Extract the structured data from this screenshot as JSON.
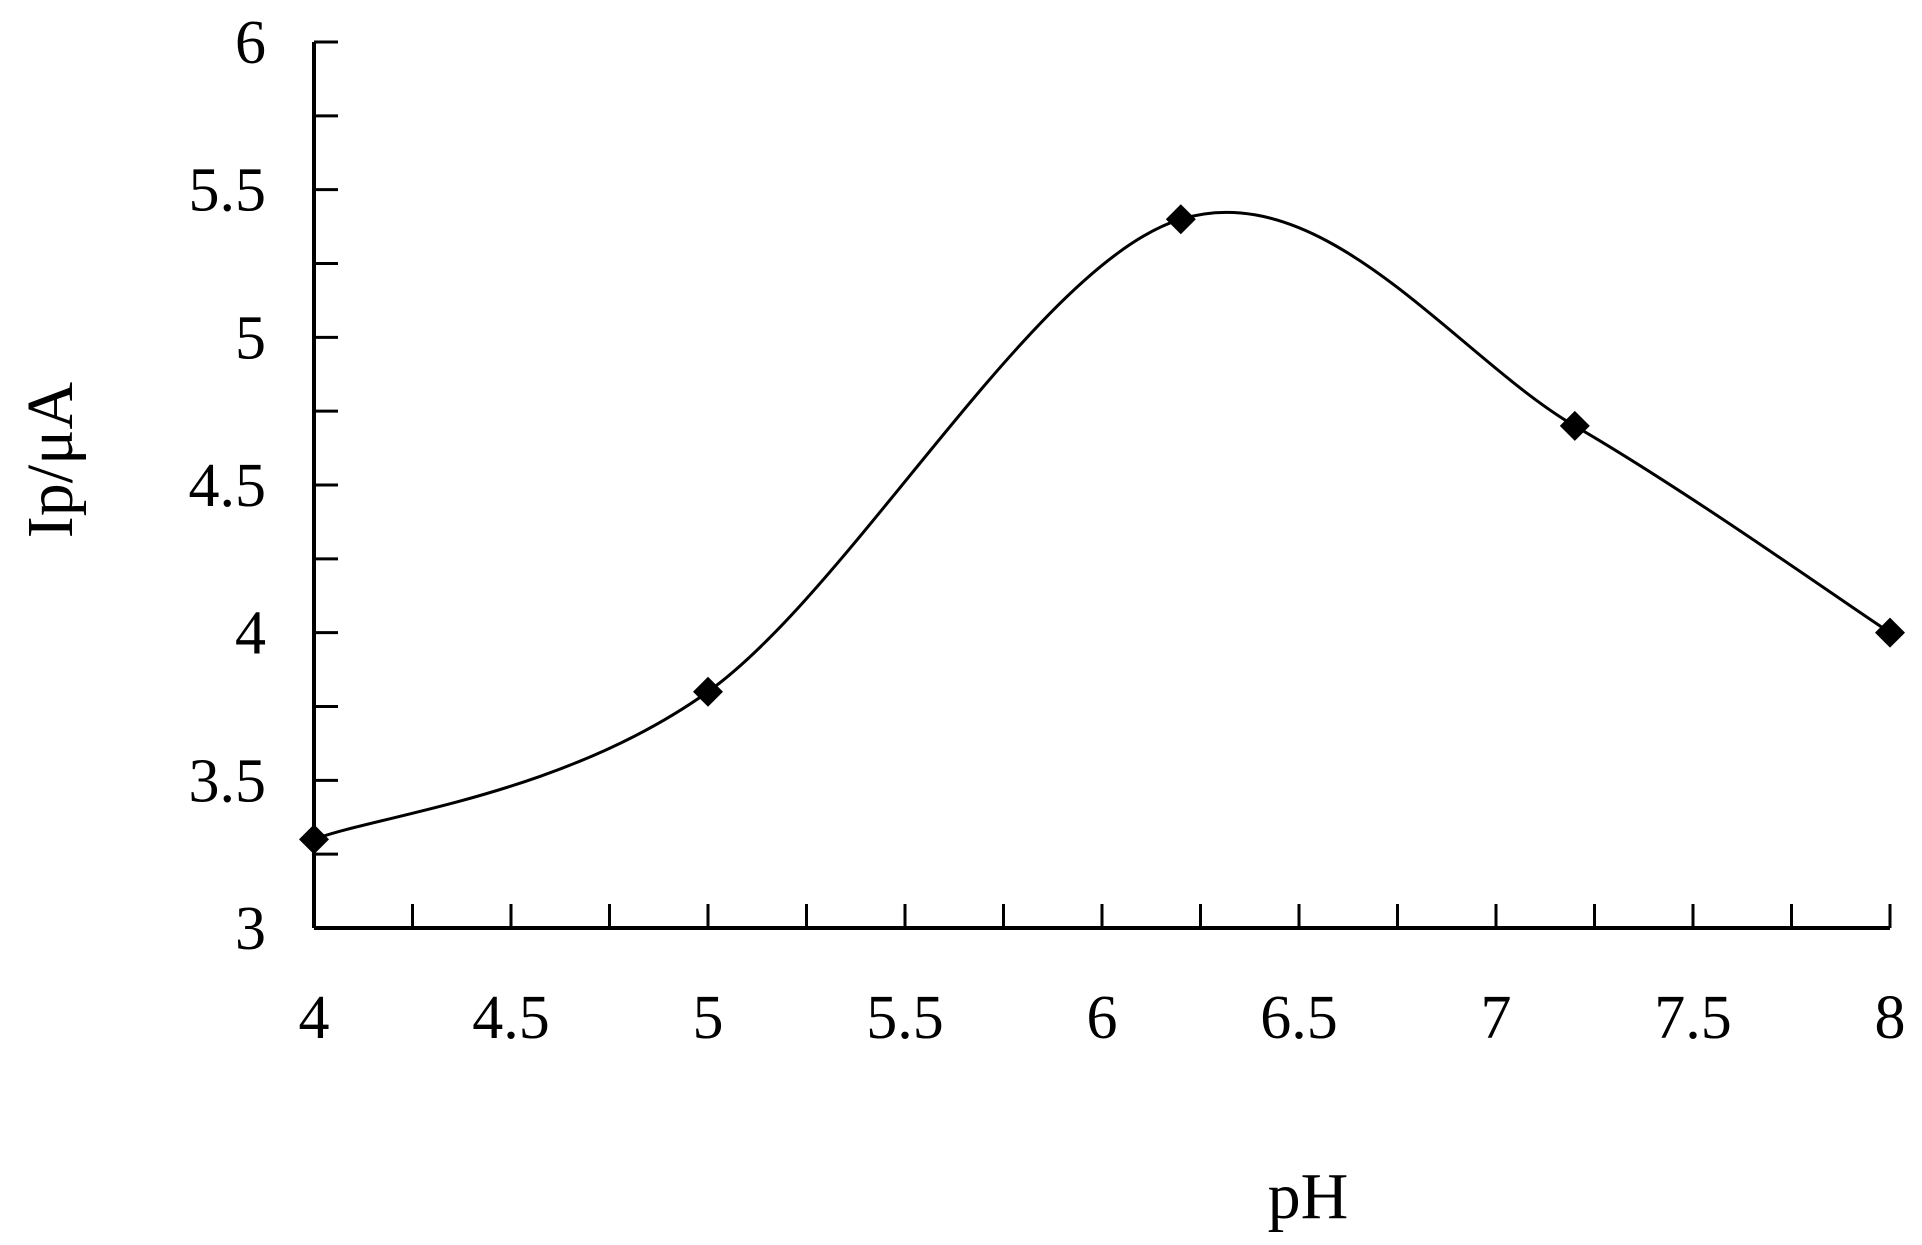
{
  "chart_data": {
    "type": "line",
    "title": "",
    "xlabel": "pH",
    "ylabel": "Ip/μA",
    "xlim": [
      4,
      8
    ],
    "ylim": [
      3,
      6
    ],
    "x_major_ticks": [
      4,
      4.5,
      5,
      5.5,
      6,
      6.5,
      7,
      7.5,
      8
    ],
    "x_tick_labels": [
      "4",
      "4.5",
      "5",
      "5.5",
      "6",
      "6.5",
      "7",
      "7.5",
      "8"
    ],
    "x_minor_step": 0.25,
    "y_major_ticks": [
      3,
      3.5,
      4,
      4.5,
      5,
      5.5,
      6
    ],
    "y_tick_labels": [
      "3",
      "3.5",
      "4",
      "4.5",
      "5",
      "5.5",
      "6"
    ],
    "y_minor_step": 0.25,
    "grid": false,
    "legend": "none",
    "smoothed": true,
    "marker": "diamond",
    "series": [
      {
        "x": [
          4,
          5,
          6.2,
          7.2,
          8
        ],
        "y": [
          3.3,
          3.8,
          5.4,
          4.7,
          4.0
        ],
        "color": "#000000"
      }
    ]
  }
}
